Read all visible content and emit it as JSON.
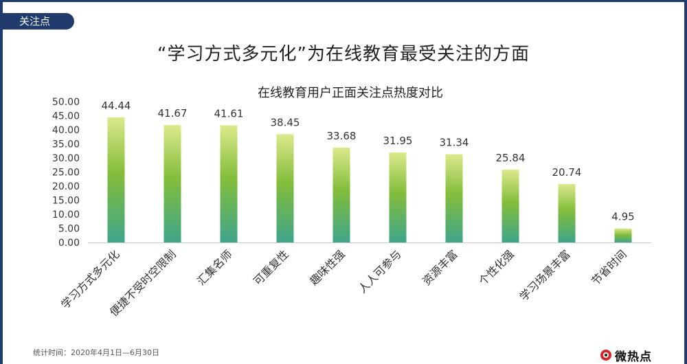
{
  "header": {
    "tag_label": "关注点",
    "title": "“学习方式多元化”为在线教育最受关注的方面"
  },
  "footer": {
    "note": "统计时间：2020年4月1日—6月30日",
    "logo_text": "微热点"
  },
  "colors": {
    "frame": "#1f3a6b",
    "bar_top": "#dce98c",
    "bar_mid": "#83bd3a",
    "bar_bottom": "#3ea58a"
  },
  "chart_data": {
    "type": "bar",
    "title": "在线教育用户正面关注点热度对比",
    "categories": [
      "学习方式多元化",
      "便捷不受时空限制",
      "汇集名师",
      "可重复性",
      "趣味性强",
      "人人可参与",
      "资源丰富",
      "个性化强",
      "学习场景丰富",
      "节省时间"
    ],
    "values": [
      44.44,
      41.67,
      41.61,
      38.45,
      33.68,
      31.95,
      31.34,
      25.84,
      20.74,
      4.95
    ],
    "value_labels": [
      "44.44",
      "41.67",
      "41.61",
      "38.45",
      "33.68",
      "31.95",
      "31.34",
      "25.84",
      "20.74",
      "4.95"
    ],
    "ylim": [
      0,
      50
    ],
    "yticks": [
      0,
      5,
      10,
      15,
      20,
      25,
      30,
      35,
      40,
      45,
      50
    ],
    "ytick_labels": [
      "0.00",
      "5.00",
      "10.00",
      "15.00",
      "20.00",
      "25.00",
      "30.00",
      "35.00",
      "40.00",
      "45.00",
      "50.00"
    ],
    "xlabel": "",
    "ylabel": "",
    "grid": false,
    "legend": "none"
  }
}
